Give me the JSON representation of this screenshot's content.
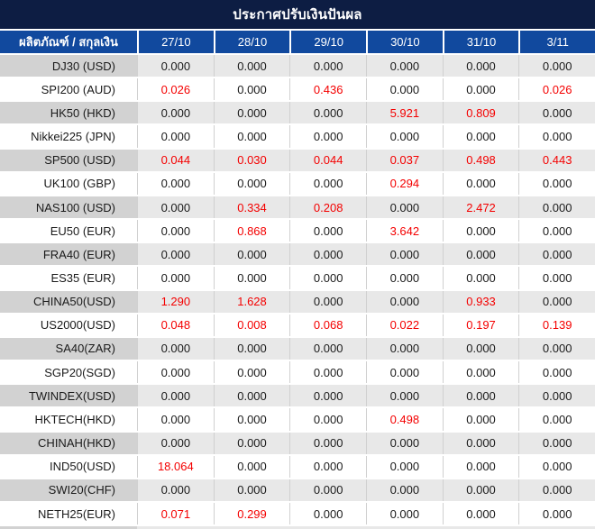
{
  "title": "ประกาศปรับเงินปันผล",
  "header": {
    "product_column": "ผลิตภัณฑ์ / สกุลเงิน",
    "dates": [
      "27/10",
      "28/10",
      "29/10",
      "30/10",
      "31/10",
      "3/11"
    ]
  },
  "rows": [
    {
      "label": "DJ30 (USD)",
      "values": [
        "0.000",
        "0.000",
        "0.000",
        "0.000",
        "0.000",
        "0.000"
      ],
      "red": []
    },
    {
      "label": "SPI200 (AUD)",
      "values": [
        "0.026",
        "0.000",
        "0.436",
        "0.000",
        "0.000",
        "0.026"
      ],
      "red": [
        0,
        2,
        5
      ]
    },
    {
      "label": "HK50 (HKD)",
      "values": [
        "0.000",
        "0.000",
        "0.000",
        "5.921",
        "0.809",
        "0.000"
      ],
      "red": [
        3,
        4
      ]
    },
    {
      "label": "Nikkei225 (JPN)",
      "values": [
        "0.000",
        "0.000",
        "0.000",
        "0.000",
        "0.000",
        "0.000"
      ],
      "red": []
    },
    {
      "label": "SP500 (USD)",
      "values": [
        "0.044",
        "0.030",
        "0.044",
        "0.037",
        "0.498",
        "0.443"
      ],
      "red": [
        0,
        1,
        2,
        3,
        4,
        5
      ]
    },
    {
      "label": "UK100 (GBP)",
      "values": [
        "0.000",
        "0.000",
        "0.000",
        "0.294",
        "0.000",
        "0.000"
      ],
      "red": [
        3
      ]
    },
    {
      "label": "NAS100 (USD)",
      "values": [
        "0.000",
        "0.334",
        "0.208",
        "0.000",
        "2.472",
        "0.000"
      ],
      "red": [
        1,
        2,
        4
      ]
    },
    {
      "label": "EU50 (EUR)",
      "values": [
        "0.000",
        "0.868",
        "0.000",
        "3.642",
        "0.000",
        "0.000"
      ],
      "red": [
        1,
        3
      ]
    },
    {
      "label": "FRA40 (EUR)",
      "values": [
        "0.000",
        "0.000",
        "0.000",
        "0.000",
        "0.000",
        "0.000"
      ],
      "red": []
    },
    {
      "label": "ES35 (EUR)",
      "values": [
        "0.000",
        "0.000",
        "0.000",
        "0.000",
        "0.000",
        "0.000"
      ],
      "red": []
    },
    {
      "label": "CHINA50(USD)",
      "values": [
        "1.290",
        "1.628",
        "0.000",
        "0.000",
        "0.933",
        "0.000"
      ],
      "red": [
        0,
        1,
        4
      ]
    },
    {
      "label": "US2000(USD)",
      "values": [
        "0.048",
        "0.008",
        "0.068",
        "0.022",
        "0.197",
        "0.139"
      ],
      "red": [
        0,
        1,
        2,
        3,
        4,
        5
      ]
    },
    {
      "label": "SA40(ZAR)",
      "values": [
        "0.000",
        "0.000",
        "0.000",
        "0.000",
        "0.000",
        "0.000"
      ],
      "red": []
    },
    {
      "label": "SGP20(SGD)",
      "values": [
        "0.000",
        "0.000",
        "0.000",
        "0.000",
        "0.000",
        "0.000"
      ],
      "red": []
    },
    {
      "label": "TWINDEX(USD)",
      "values": [
        "0.000",
        "0.000",
        "0.000",
        "0.000",
        "0.000",
        "0.000"
      ],
      "red": []
    },
    {
      "label": "HKTECH(HKD)",
      "values": [
        "0.000",
        "0.000",
        "0.000",
        "0.498",
        "0.000",
        "0.000"
      ],
      "red": [
        3
      ]
    },
    {
      "label": "CHINAH(HKD)",
      "values": [
        "0.000",
        "0.000",
        "0.000",
        "0.000",
        "0.000",
        "0.000"
      ],
      "red": []
    },
    {
      "label": "IND50(USD)",
      "values": [
        "18.064",
        "0.000",
        "0.000",
        "0.000",
        "0.000",
        "0.000"
      ],
      "red": [
        0
      ]
    },
    {
      "label": "SWI20(CHF)",
      "values": [
        "0.000",
        "0.000",
        "0.000",
        "0.000",
        "0.000",
        "0.000"
      ],
      "red": []
    },
    {
      "label": "NETH25(EUR)",
      "values": [
        "0.071",
        "0.299",
        "0.000",
        "0.000",
        "0.000",
        "0.000"
      ],
      "red": [
        0,
        1
      ]
    }
  ],
  "colors": {
    "title_bg": "#0d1d43",
    "header_bg": "#11499e",
    "label_gray": "#d2d2d2",
    "cell_gray": "#e8e8e8",
    "separator_gray": "#d0d0d0",
    "value_red": "#f40000",
    "text_dark": "#1a1a1a"
  }
}
